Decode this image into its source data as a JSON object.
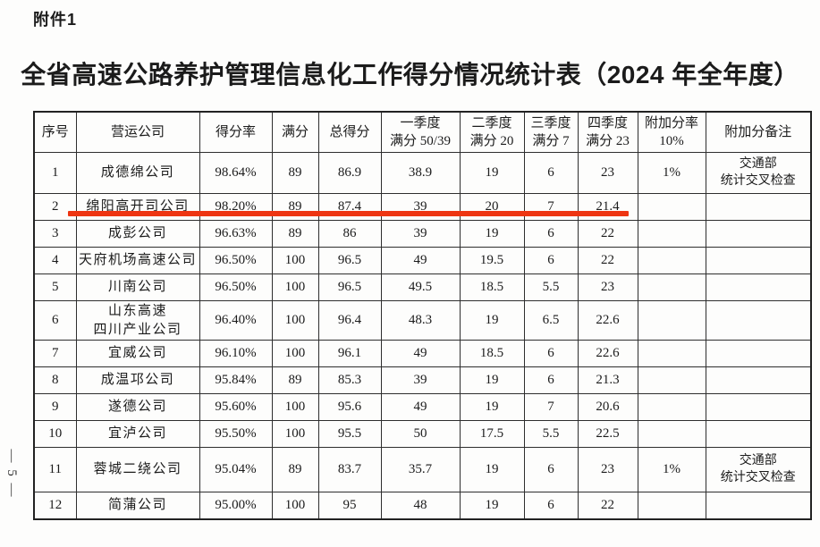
{
  "page": {
    "attachment_label": "附件1",
    "title": "全省高速公路养护管理信息化工作得分情况统计表（2024 年全年度）",
    "page_number": "— 5 —"
  },
  "colors": {
    "underline_red": "#ee3512",
    "paper": "#fdfdfc",
    "ink": "#1b1b1b"
  },
  "table": {
    "columns": [
      {
        "id": "no",
        "label_lines": [
          "序号"
        ]
      },
      {
        "id": "company",
        "label_lines": [
          "营运公司"
        ]
      },
      {
        "id": "rate",
        "label_lines": [
          "得分率"
        ]
      },
      {
        "id": "full",
        "label_lines": [
          "满分"
        ]
      },
      {
        "id": "total",
        "label_lines": [
          "总得分"
        ]
      },
      {
        "id": "q1",
        "label_lines": [
          "一季度",
          "满分 50/39"
        ]
      },
      {
        "id": "q2",
        "label_lines": [
          "二季度",
          "满分 20"
        ]
      },
      {
        "id": "q3",
        "label_lines": [
          "三季度",
          "满分 7"
        ]
      },
      {
        "id": "q4",
        "label_lines": [
          "四季度",
          "满分 23"
        ]
      },
      {
        "id": "bonus",
        "label_lines": [
          "附加分率",
          "10%"
        ]
      },
      {
        "id": "remark",
        "label_lines": [
          "附加分备注"
        ]
      }
    ],
    "rows": [
      {
        "no": "1",
        "company": [
          "成德绵公司"
        ],
        "rate": "98.64%",
        "full": "89",
        "total": "86.9",
        "q1": "38.9",
        "q2": "19",
        "q3": "6",
        "q4": "23",
        "bonus": "1%",
        "remark": [
          "交通部",
          "统计交叉检查"
        ]
      },
      {
        "no": "2",
        "company": [
          "绵阳高开司公司"
        ],
        "rate": "98.20%",
        "full": "89",
        "total": "87.4",
        "q1": "39",
        "q2": "20",
        "q3": "7",
        "q4": "21.4",
        "bonus": "",
        "remark": []
      },
      {
        "no": "3",
        "company": [
          "成彭公司"
        ],
        "rate": "96.63%",
        "full": "89",
        "total": "86",
        "q1": "39",
        "q2": "19",
        "q3": "6",
        "q4": "22",
        "bonus": "",
        "remark": []
      },
      {
        "no": "4",
        "company": [
          "天府机场高速公司"
        ],
        "rate": "96.50%",
        "full": "100",
        "total": "96.5",
        "q1": "49",
        "q2": "19.5",
        "q3": "6",
        "q4": "22",
        "bonus": "",
        "remark": []
      },
      {
        "no": "5",
        "company": [
          "川南公司"
        ],
        "rate": "96.50%",
        "full": "100",
        "total": "96.5",
        "q1": "49.5",
        "q2": "18.5",
        "q3": "5.5",
        "q4": "23",
        "bonus": "",
        "remark": []
      },
      {
        "no": "6",
        "company": [
          "山东高速",
          "四川产业公司"
        ],
        "rate": "96.40%",
        "full": "100",
        "total": "96.4",
        "q1": "48.3",
        "q2": "19",
        "q3": "6.5",
        "q4": "22.6",
        "bonus": "",
        "remark": []
      },
      {
        "no": "7",
        "company": [
          "宜威公司"
        ],
        "rate": "96.10%",
        "full": "100",
        "total": "96.1",
        "q1": "49",
        "q2": "18.5",
        "q3": "6",
        "q4": "22.6",
        "bonus": "",
        "remark": []
      },
      {
        "no": "8",
        "company": [
          "成温邛公司"
        ],
        "rate": "95.84%",
        "full": "89",
        "total": "85.3",
        "q1": "39",
        "q2": "19",
        "q3": "6",
        "q4": "21.3",
        "bonus": "",
        "remark": []
      },
      {
        "no": "9",
        "company": [
          "遂德公司"
        ],
        "rate": "95.60%",
        "full": "100",
        "total": "95.6",
        "q1": "49",
        "q2": "19",
        "q3": "7",
        "q4": "20.6",
        "bonus": "",
        "remark": []
      },
      {
        "no": "10",
        "company": [
          "宜泸公司"
        ],
        "rate": "95.50%",
        "full": "100",
        "total": "95.5",
        "q1": "50",
        "q2": "17.5",
        "q3": "5.5",
        "q4": "22.5",
        "bonus": "",
        "remark": []
      },
      {
        "no": "11",
        "company": [
          "蓉城二绕公司"
        ],
        "rate": "95.04%",
        "full": "89",
        "total": "83.7",
        "q1": "35.7",
        "q2": "19",
        "q3": "6",
        "q4": "23",
        "bonus": "1%",
        "remark": [
          "交通部",
          "统计交叉检查"
        ]
      },
      {
        "no": "12",
        "company": [
          "简蒲公司"
        ],
        "rate": "95.00%",
        "full": "100",
        "total": "95",
        "q1": "48",
        "q2": "19",
        "q3": "6",
        "q4": "22",
        "bonus": "",
        "remark": []
      }
    ]
  }
}
